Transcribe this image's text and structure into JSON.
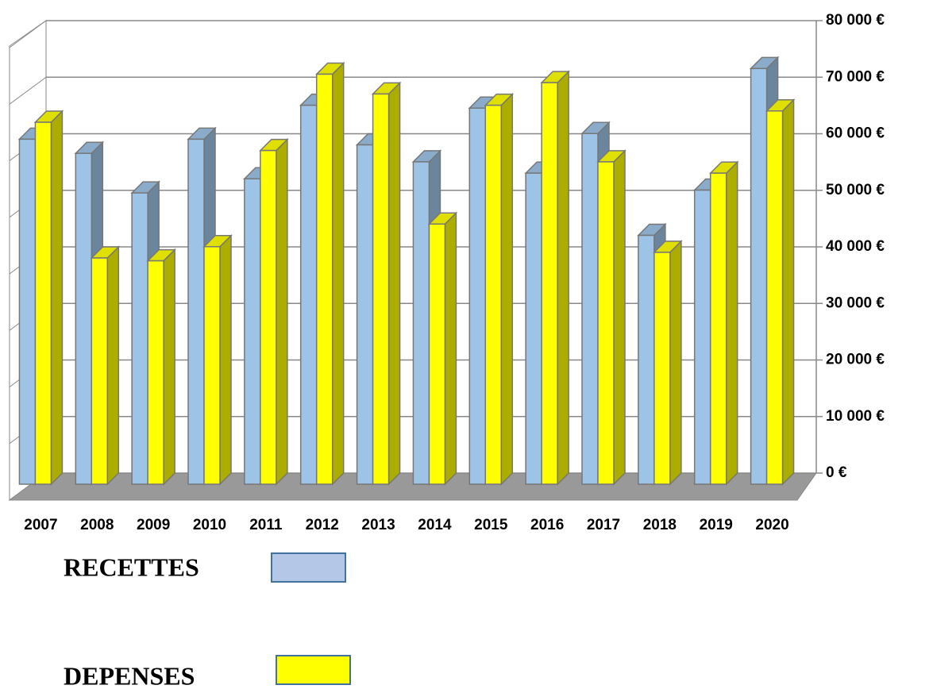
{
  "chart_data": {
    "type": "bar3d",
    "categories": [
      "2007",
      "2008",
      "2009",
      "2010",
      "2011",
      "2012",
      "2013",
      "2014",
      "2015",
      "2016",
      "2017",
      "2018",
      "2019",
      "2020"
    ],
    "series": [
      {
        "name": "RECETTES",
        "color": "#9dc3e6",
        "values": [
          61000,
          58500,
          51500,
          61000,
          54000,
          67000,
          60000,
          57000,
          66500,
          55000,
          62000,
          44000,
          52000,
          73500
        ]
      },
      {
        "name": "DEPENSES",
        "color": "#ffff00",
        "values": [
          64000,
          40000,
          39500,
          42000,
          59000,
          72500,
          69000,
          46000,
          67000,
          71000,
          57000,
          41000,
          55000,
          66000
        ]
      }
    ],
    "ylim": [
      0,
      80000
    ],
    "yticks": [
      {
        "value": 0,
        "label": "0 €"
      },
      {
        "value": 10000,
        "label": "10 000 €"
      },
      {
        "value": 20000,
        "label": "20 000 €"
      },
      {
        "value": 30000,
        "label": "30 000 €"
      },
      {
        "value": 40000,
        "label": "40 000 €"
      },
      {
        "value": 50000,
        "label": "50 000 €"
      },
      {
        "value": 60000,
        "label": "60 000 €"
      },
      {
        "value": 70000,
        "label": "70 000 €"
      },
      {
        "value": 80000,
        "label": "80 000 €"
      }
    ],
    "grid": true,
    "y_axis_side": "right"
  }
}
